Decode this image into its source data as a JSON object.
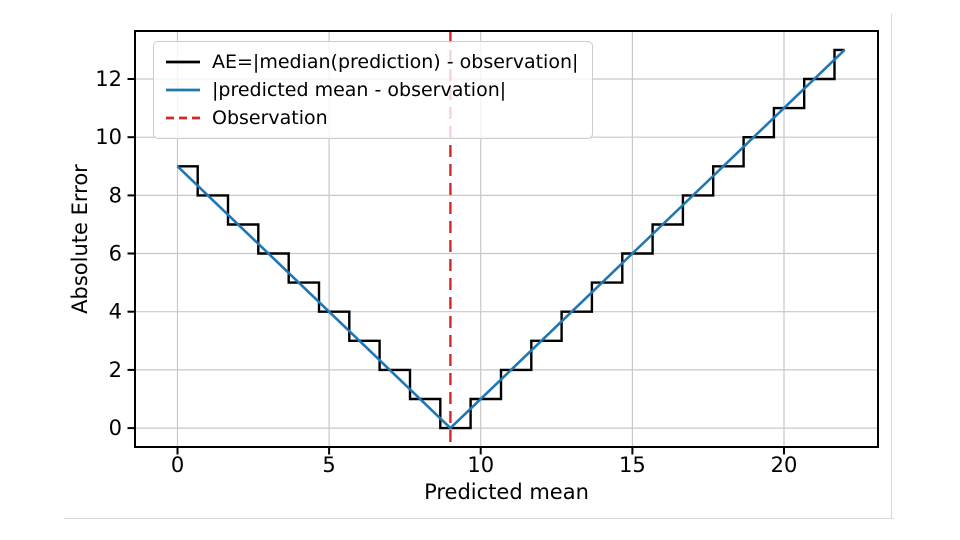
{
  "figure": {
    "background": "#ffffff",
    "panel_border_color": "#d9d9d9"
  },
  "chart_data": {
    "type": "line",
    "title": "",
    "xlabel": "Predicted mean",
    "ylabel": "Absolute Error",
    "xlim": [
      -1.4,
      23.1
    ],
    "ylim": [
      -0.65,
      13.65
    ],
    "xticks": [
      0,
      5,
      10,
      15,
      20
    ],
    "yticks": [
      0,
      2,
      4,
      6,
      8,
      10,
      12
    ],
    "grid": true,
    "grid_color": "#c8c8c8",
    "spine_color": "#000000",
    "legend_position": "upper-left",
    "observation_x": 9,
    "series": [
      {
        "name": "AE=|median(prediction) - observation|",
        "type": "step",
        "color": "#000000",
        "linestyle": "solid",
        "x": [
          0,
          0.667,
          1.667,
          2.667,
          3.667,
          4.667,
          5.667,
          6.667,
          7.667,
          8.667,
          9.667,
          10.667,
          11.667,
          12.667,
          13.667,
          14.667,
          15.667,
          16.667,
          17.667,
          18.667,
          19.667,
          20.667,
          21.667
        ],
        "y": [
          9,
          8,
          7,
          6,
          5,
          4,
          3,
          2,
          1,
          0,
          1,
          2,
          3,
          4,
          5,
          6,
          7,
          8,
          9,
          10,
          11,
          12,
          13
        ],
        "x_end": 22
      },
      {
        "name": "|predicted mean - observation|",
        "type": "line",
        "color": "#1f77b4",
        "linestyle": "solid",
        "x": [
          0,
          9,
          22
        ],
        "y": [
          9,
          0,
          13
        ]
      },
      {
        "name": "Observation",
        "type": "vline",
        "color": "#d62728",
        "linestyle": "dashed",
        "x": 9
      }
    ]
  }
}
